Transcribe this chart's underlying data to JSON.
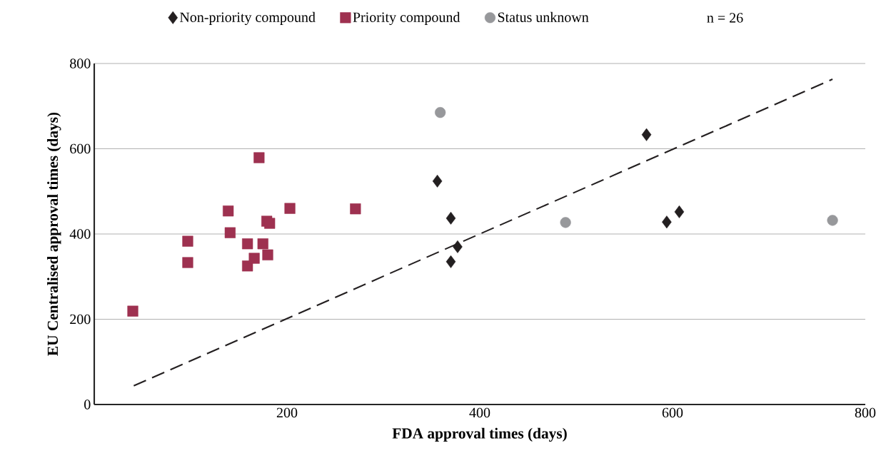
{
  "chart_data": {
    "type": "scatter",
    "xlabel": "FDA approval times (days)",
    "ylabel": "EU Centralised approval times (days)",
    "xlim": [
      0,
      800
    ],
    "ylim": [
      0,
      800
    ],
    "xticks": [
      200,
      400,
      600,
      800
    ],
    "yticks": [
      0,
      200,
      400,
      600,
      800
    ],
    "grid": "y",
    "legend": "top",
    "annotations": [
      "n = 26"
    ],
    "series": [
      {
        "name": "Non-priority compound",
        "color": "#231f20",
        "marker": "diamond",
        "x": [
          356,
          370,
          377,
          370,
          573,
          594,
          607
        ],
        "values": [
          524,
          437,
          370,
          335,
          633,
          428,
          452
        ]
      },
      {
        "name": "Priority compound",
        "color": "#9e3150",
        "marker": "square",
        "x": [
          40,
          97,
          97,
          139,
          141,
          159,
          159,
          166,
          171,
          175,
          179,
          182,
          180,
          203,
          271
        ],
        "values": [
          219,
          383,
          333,
          454,
          403,
          377,
          325,
          343,
          579,
          377,
          430,
          425,
          351,
          460,
          459
        ]
      },
      {
        "name": "Status unknown",
        "color": "#97989b",
        "marker": "circle",
        "x": [
          359,
          489,
          766
        ],
        "values": [
          685,
          427,
          432
        ]
      },
      {
        "type": "line",
        "color": "#231f20",
        "line_style": "dashed",
        "marker": "none",
        "x": [
          41,
          766
        ],
        "values": [
          44,
          763
        ]
      }
    ]
  }
}
